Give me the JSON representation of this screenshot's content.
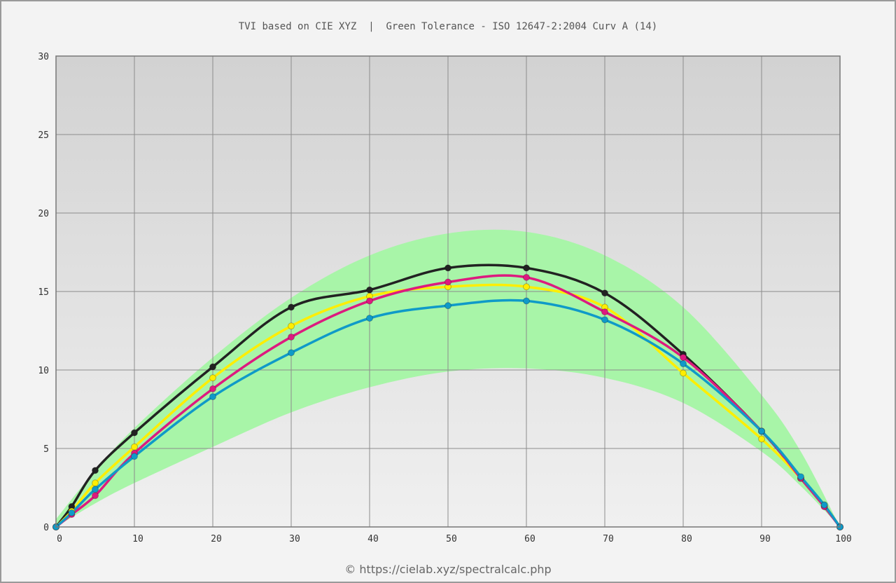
{
  "chart_data": {
    "type": "line",
    "title": "TVI based on CIE XYZ  |  Green Tolerance - ISO 12647-2:2004 Curv A (14)",
    "xlabel": "",
    "ylabel": "",
    "xlim": [
      0,
      100
    ],
    "ylim": [
      0,
      30
    ],
    "x_ticks": [
      0,
      10,
      20,
      30,
      40,
      50,
      60,
      70,
      80,
      90,
      100
    ],
    "y_ticks": [
      0,
      5,
      10,
      15,
      20,
      25,
      30
    ],
    "grid": true,
    "legend": "none",
    "tolerance_band": {
      "color": "#a8f5a8",
      "x": [
        0,
        5,
        10,
        20,
        30,
        40,
        50,
        60,
        70,
        80,
        90,
        95,
        100
      ],
      "lower": [
        0,
        1.5,
        2.8,
        5.1,
        7.3,
        8.9,
        9.9,
        10.1,
        9.5,
        7.9,
        4.8,
        2.6,
        0
      ],
      "upper": [
        0.5,
        3.6,
        6.3,
        10.8,
        14.6,
        17.3,
        18.7,
        18.8,
        17.3,
        14.0,
        8.4,
        4.8,
        0
      ]
    },
    "series": [
      {
        "color": "#222222",
        "x": [
          0,
          2,
          5,
          10,
          20,
          30,
          40,
          50,
          60,
          70,
          80,
          90,
          95,
          98,
          100
        ],
        "y": [
          0,
          1.3,
          3.6,
          6.0,
          10.2,
          14.0,
          15.1,
          16.5,
          16.5,
          14.9,
          11.0,
          6.1,
          3.1,
          1.3,
          0
        ]
      },
      {
        "color": "#ffee00",
        "x": [
          0,
          2,
          5,
          10,
          20,
          30,
          40,
          50,
          60,
          70,
          80,
          90,
          95,
          98,
          100
        ],
        "y": [
          0,
          1.0,
          2.8,
          5.1,
          9.5,
          12.8,
          14.7,
          15.3,
          15.3,
          14.0,
          9.8,
          5.6,
          3.1,
          1.4,
          0
        ]
      },
      {
        "color": "#dd1a7f",
        "x": [
          0,
          2,
          5,
          10,
          20,
          30,
          40,
          50,
          60,
          70,
          80,
          90,
          95,
          98,
          100
        ],
        "y": [
          0,
          0.8,
          2.0,
          4.7,
          8.8,
          12.1,
          14.4,
          15.6,
          15.9,
          13.7,
          10.8,
          6.1,
          3.1,
          1.3,
          0
        ]
      },
      {
        "color": "#0f9ac8",
        "x": [
          0,
          2,
          5,
          10,
          20,
          30,
          40,
          50,
          60,
          70,
          80,
          90,
          95,
          98,
          100
        ],
        "y": [
          0,
          0.9,
          2.4,
          4.5,
          8.3,
          11.1,
          13.3,
          14.1,
          14.4,
          13.2,
          10.4,
          6.1,
          3.2,
          1.4,
          0
        ]
      }
    ]
  },
  "credit": "© https://cielab.xyz/spectralcalc.php"
}
